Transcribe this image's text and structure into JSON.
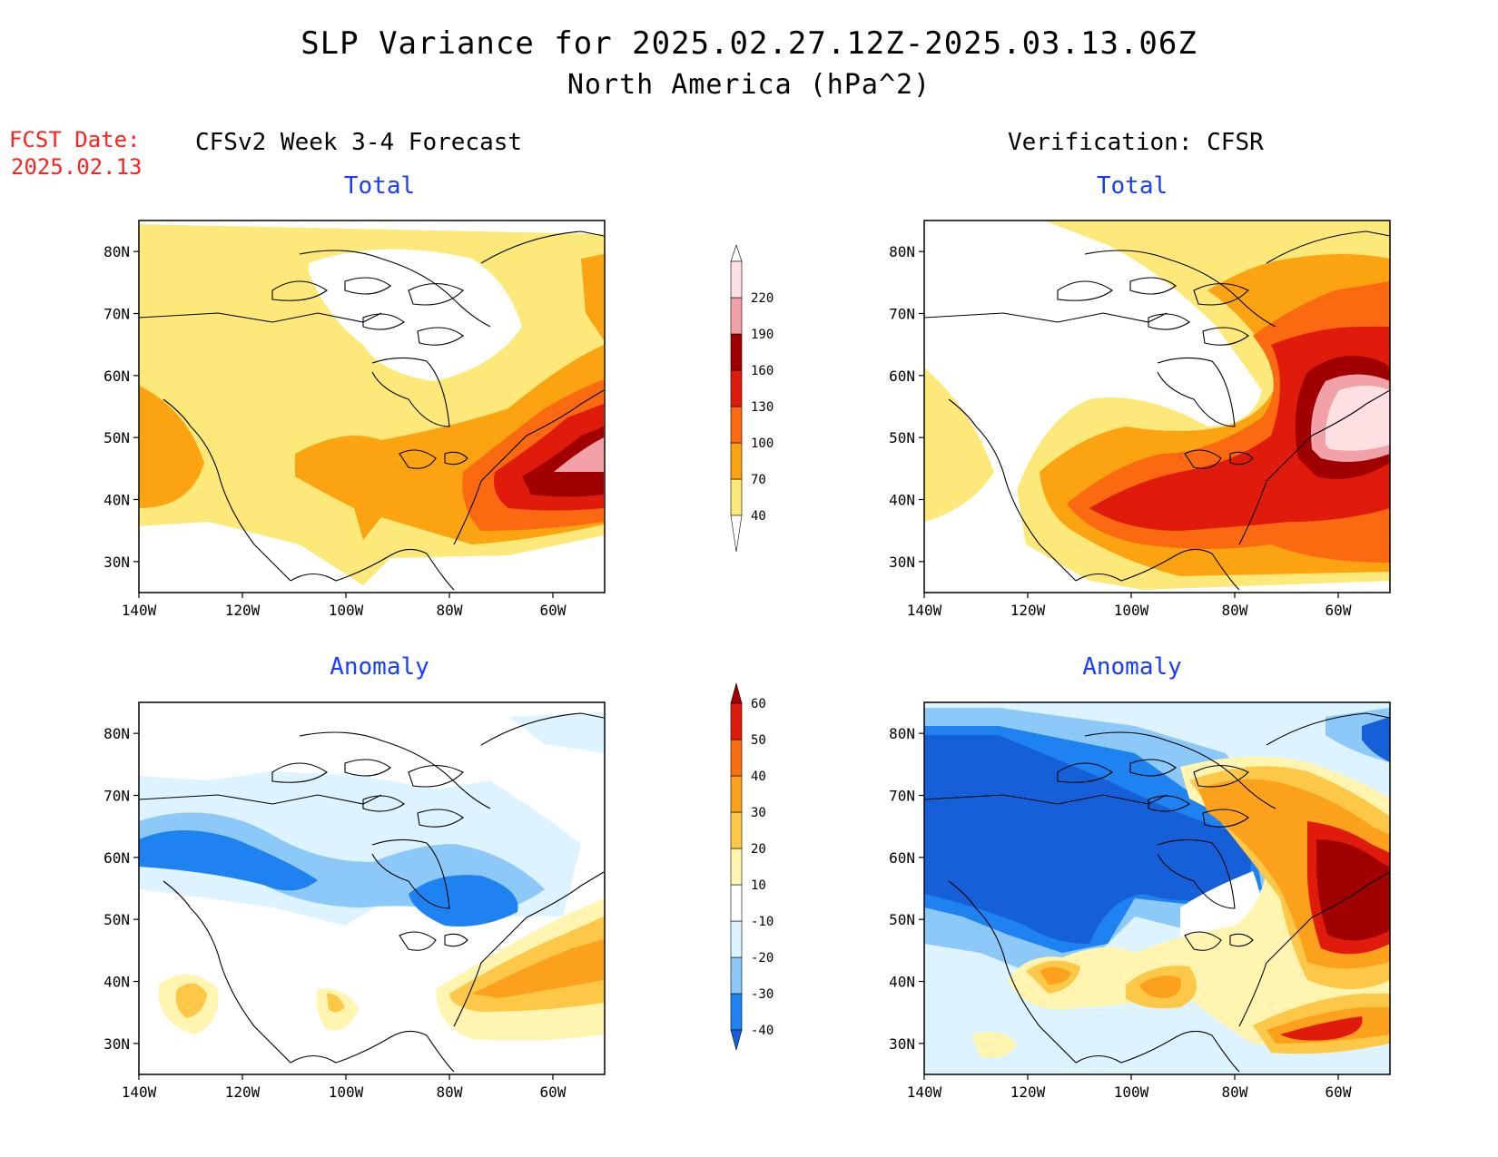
{
  "title": {
    "line1": "SLP Variance for 2025.02.27.12Z-2025.03.13.06Z",
    "line2": "North America (hPa^2)"
  },
  "forecast_date": {
    "label": "FCST Date:",
    "value": "2025.02.13"
  },
  "columns": {
    "left": "CFSv2 Week 3-4 Forecast",
    "right": "Verification: CFSR"
  },
  "panels": [
    {
      "id": "fcst-total",
      "title": "Total",
      "column": "left",
      "row": "top",
      "scale": "total"
    },
    {
      "id": "verif-total",
      "title": "Total",
      "column": "right",
      "row": "top",
      "scale": "total"
    },
    {
      "id": "fcst-anomaly",
      "title": "Anomaly",
      "column": "left",
      "row": "bottom",
      "scale": "anomaly"
    },
    {
      "id": "verif-anomaly",
      "title": "Anomaly",
      "column": "right",
      "row": "bottom",
      "scale": "anomaly"
    }
  ],
  "axes": {
    "lon_ticks": [
      "140W",
      "120W",
      "100W",
      "80W",
      "60W"
    ],
    "lon_values": [
      -140,
      -120,
      -100,
      -80,
      -60
    ],
    "lat_ticks": [
      "30N",
      "40N",
      "50N",
      "60N",
      "70N",
      "80N"
    ],
    "lat_values": [
      30,
      40,
      50,
      60,
      70,
      80
    ],
    "lon_range": [
      -140,
      -50
    ],
    "lat_range": [
      25,
      85
    ]
  },
  "colorbars": {
    "total": {
      "labels": [
        "40",
        "70",
        "100",
        "130",
        "160",
        "190",
        "220"
      ],
      "colors": [
        "#fde97a",
        "#fca311",
        "#fb6a10",
        "#e01b0c",
        "#a00000",
        "#f2a1a8",
        "#fde0e2"
      ]
    },
    "anomaly": {
      "labels": [
        "-40",
        "-30",
        "-20",
        "-10",
        "10",
        "20",
        "30",
        "40",
        "50",
        "60"
      ],
      "colors": [
        "#1560d8",
        "#1e82f0",
        "#8cc8f8",
        "#ddf3ff",
        "#ffffff",
        "#fff5b0",
        "#fdc847",
        "#fba11b",
        "#f96e10",
        "#e01b0c",
        "#a00000"
      ]
    }
  }
}
